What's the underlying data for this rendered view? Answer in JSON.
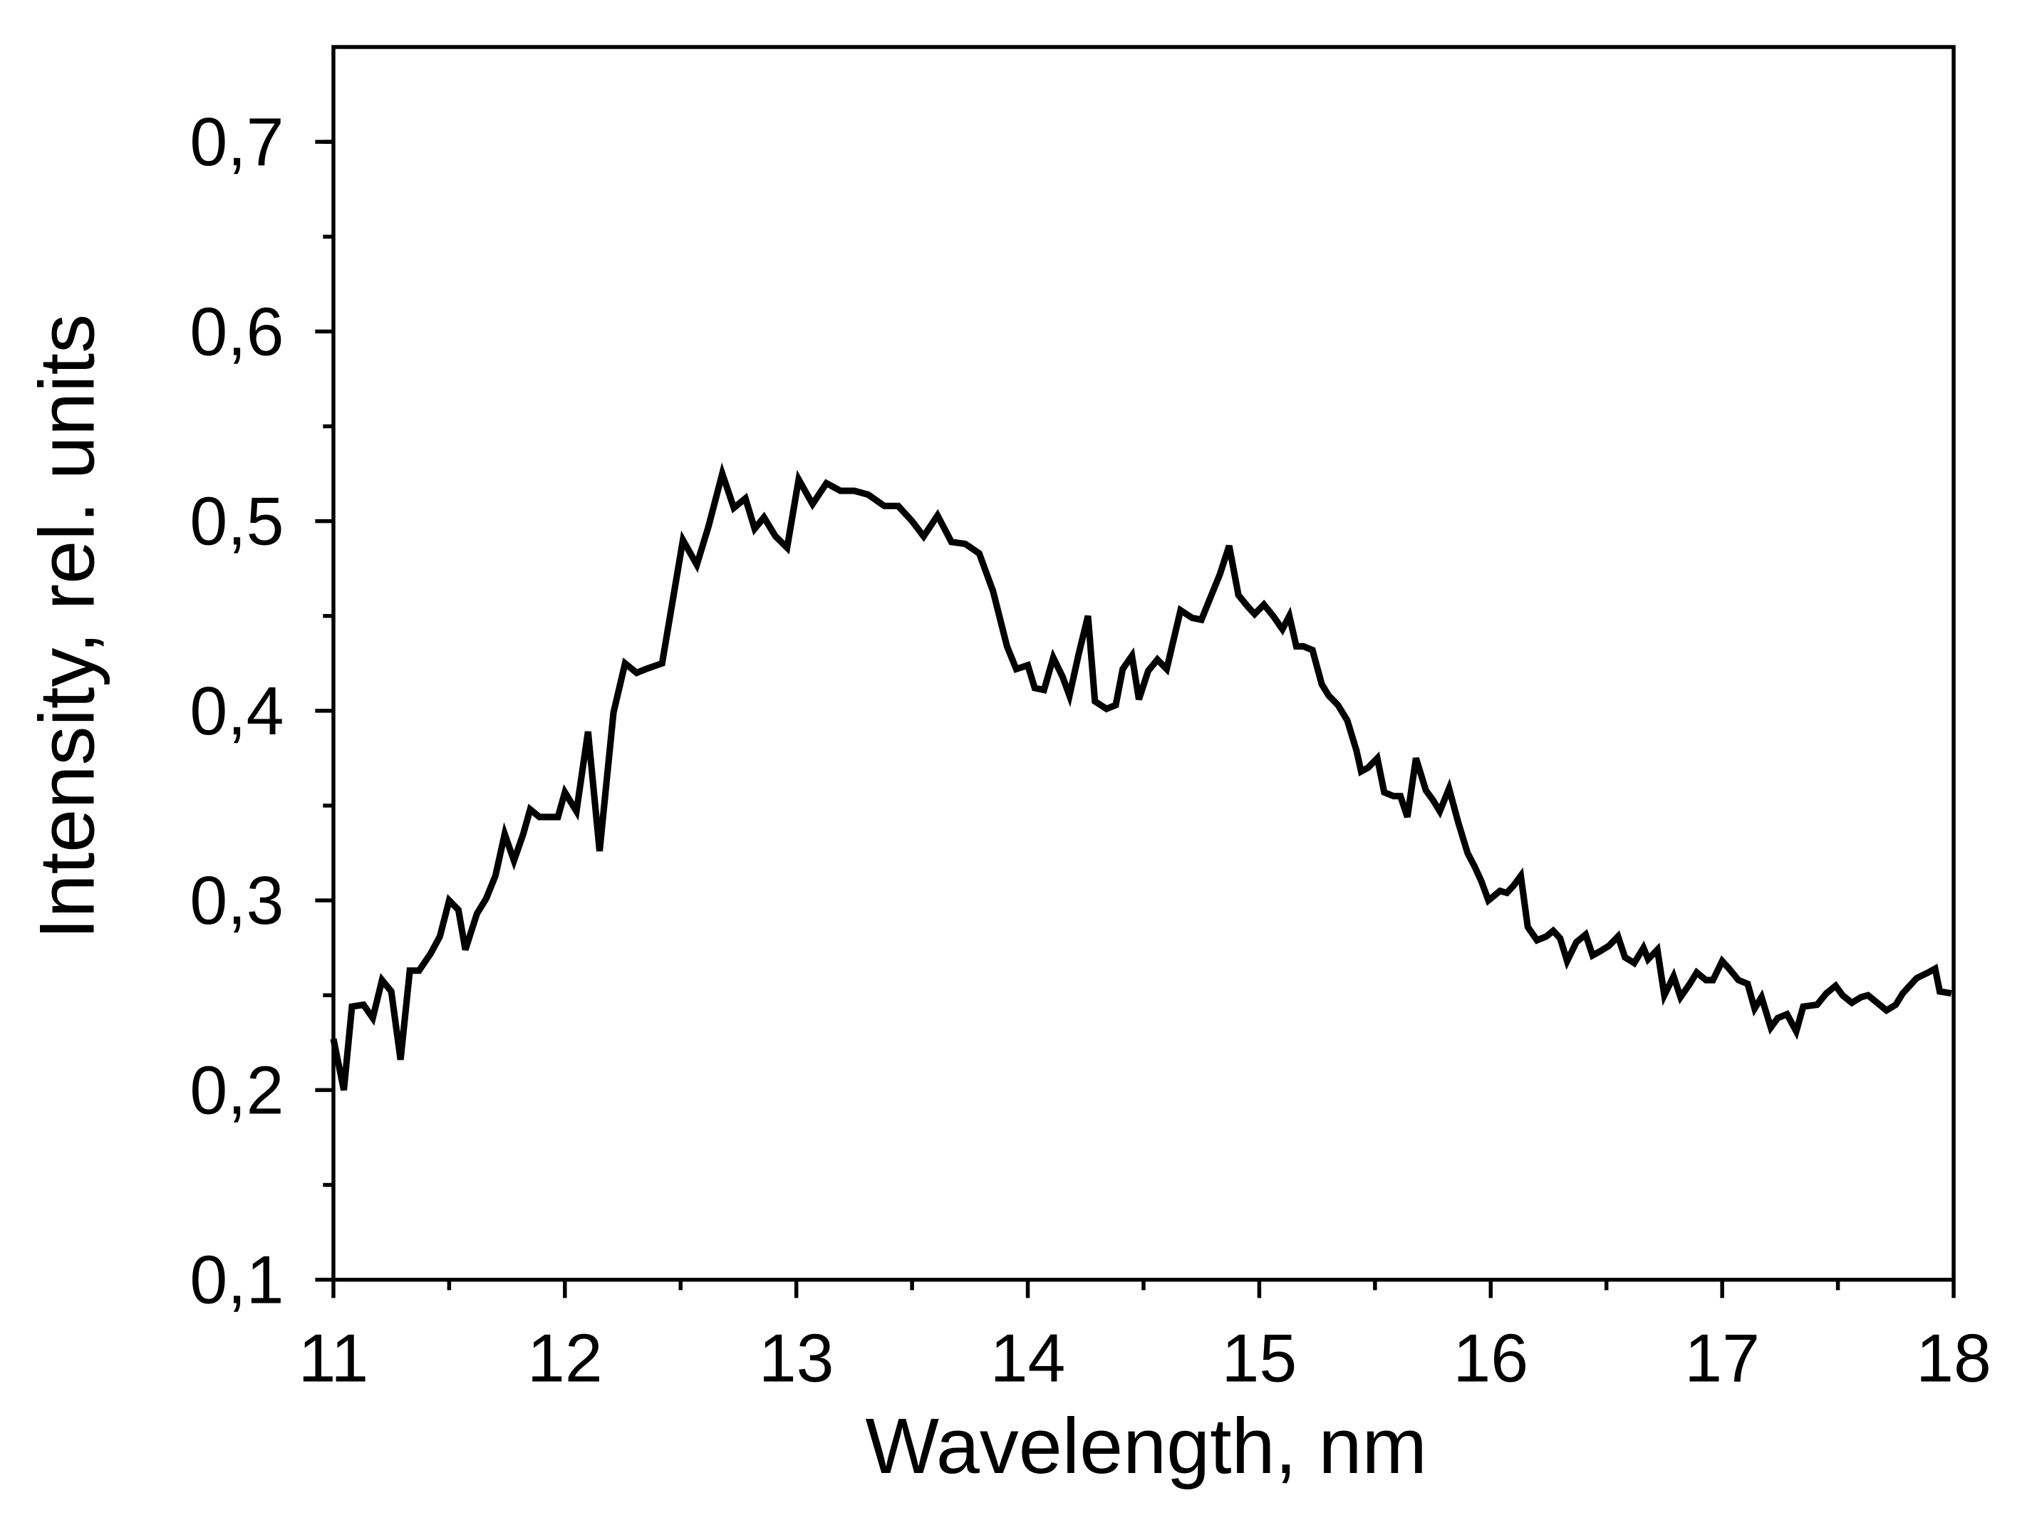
{
  "chart_data": {
    "type": "line",
    "x_label": "Wavelength, nm",
    "y_label": "Intensity, rel. units",
    "xlim": [
      11,
      18
    ],
    "ylim": [
      0.1,
      0.75
    ],
    "xticks": [
      11,
      12,
      13,
      14,
      15,
      16,
      17,
      18
    ],
    "yticks": [
      {
        "value": 0.1,
        "label": "0,1"
      },
      {
        "value": 0.2,
        "label": "0,2"
      },
      {
        "value": 0.3,
        "label": "0,3"
      },
      {
        "value": 0.4,
        "label": "0,4"
      },
      {
        "value": 0.5,
        "label": "0,5"
      },
      {
        "value": 0.6,
        "label": "0,6"
      },
      {
        "value": 0.7,
        "label": "0,7"
      }
    ],
    "grid": false,
    "series": [
      {
        "name": "Intensity",
        "color": "#000000",
        "x": [
          11.0,
          11.045,
          11.08,
          11.13,
          11.17,
          11.21,
          11.25,
          11.29,
          11.33,
          11.37,
          11.42,
          11.46,
          11.5,
          11.54,
          11.57,
          11.62,
          11.66,
          11.7,
          11.74,
          11.78,
          11.82,
          11.85,
          11.89,
          11.93,
          11.97,
          12.0,
          12.05,
          12.1,
          12.15,
          12.21,
          12.26,
          12.31,
          12.35,
          12.42,
          12.51,
          12.57,
          12.62,
          12.68,
          12.73,
          12.78,
          12.82,
          12.86,
          12.91,
          12.96,
          13.01,
          13.07,
          13.13,
          13.19,
          13.25,
          13.31,
          13.38,
          13.44,
          13.5,
          13.55,
          13.61,
          13.67,
          13.73,
          13.79,
          13.85,
          13.91,
          13.95,
          14.0,
          14.03,
          14.07,
          14.11,
          14.15,
          14.18,
          14.22,
          14.26,
          14.29,
          14.34,
          14.38,
          14.41,
          14.45,
          14.48,
          14.52,
          14.56,
          14.6,
          14.66,
          14.71,
          14.75,
          14.79,
          14.83,
          14.87,
          14.91,
          14.95,
          14.98,
          15.02,
          15.06,
          15.1,
          15.13,
          15.16,
          15.19,
          15.23,
          15.27,
          15.3,
          15.34,
          15.38,
          15.42,
          15.44,
          15.47,
          15.51,
          15.54,
          15.58,
          15.61,
          15.64,
          15.677,
          15.72,
          15.75,
          15.78,
          15.82,
          15.86,
          15.9,
          15.93,
          15.96,
          15.99,
          16.04,
          16.07,
          16.1,
          16.13,
          16.16,
          16.2,
          16.24,
          16.27,
          16.3,
          16.33,
          16.37,
          16.41,
          16.44,
          16.47,
          16.51,
          16.55,
          16.58,
          16.62,
          16.66,
          16.68,
          16.72,
          16.75,
          16.79,
          16.82,
          16.86,
          16.89,
          16.93,
          16.96,
          17.0,
          17.03,
          17.07,
          17.11,
          17.14,
          17.17,
          17.21,
          17.24,
          17.28,
          17.32,
          17.35,
          17.41,
          17.45,
          17.49,
          17.52,
          17.56,
          17.6,
          17.63,
          17.67,
          17.71,
          17.75,
          17.78,
          17.81,
          17.84,
          17.89,
          17.92,
          17.94,
          17.99
        ],
        "values": [
          0.227,
          0.2,
          0.244,
          0.245,
          0.238,
          0.258,
          0.252,
          0.216,
          0.263,
          0.263,
          0.272,
          0.281,
          0.3,
          0.295,
          0.274,
          0.293,
          0.301,
          0.313,
          0.335,
          0.321,
          0.335,
          0.348,
          0.344,
          0.344,
          0.344,
          0.357,
          0.347,
          0.389,
          0.326,
          0.399,
          0.425,
          0.42,
          0.422,
          0.425,
          0.49,
          0.477,
          0.497,
          0.525,
          0.507,
          0.512,
          0.496,
          0.502,
          0.492,
          0.486,
          0.522,
          0.509,
          0.52,
          0.516,
          0.516,
          0.514,
          0.508,
          0.508,
          0.5,
          0.492,
          0.503,
          0.489,
          0.488,
          0.483,
          0.463,
          0.434,
          0.422,
          0.424,
          0.412,
          0.411,
          0.428,
          0.418,
          0.408,
          0.43,
          0.45,
          0.405,
          0.401,
          0.403,
          0.422,
          0.429,
          0.406,
          0.421,
          0.427,
          0.422,
          0.453,
          0.449,
          0.448,
          0.46,
          0.472,
          0.487,
          0.461,
          0.455,
          0.451,
          0.456,
          0.45,
          0.443,
          0.45,
          0.434,
          0.434,
          0.432,
          0.414,
          0.408,
          0.403,
          0.395,
          0.379,
          0.368,
          0.37,
          0.375,
          0.357,
          0.355,
          0.355,
          0.344,
          0.375,
          0.358,
          0.353,
          0.347,
          0.359,
          0.341,
          0.325,
          0.318,
          0.31,
          0.3,
          0.305,
          0.304,
          0.308,
          0.313,
          0.286,
          0.279,
          0.281,
          0.284,
          0.28,
          0.268,
          0.278,
          0.282,
          0.271,
          0.273,
          0.276,
          0.281,
          0.27,
          0.267,
          0.275,
          0.269,
          0.274,
          0.25,
          0.26,
          0.249,
          0.256,
          0.262,
          0.258,
          0.258,
          0.268,
          0.264,
          0.258,
          0.256,
          0.243,
          0.249,
          0.233,
          0.238,
          0.24,
          0.231,
          0.244,
          0.245,
          0.251,
          0.255,
          0.25,
          0.246,
          0.249,
          0.25,
          0.246,
          0.242,
          0.245,
          0.251,
          0.255,
          0.259,
          0.262,
          0.264,
          0.252,
          0.251
        ]
      }
    ]
  }
}
